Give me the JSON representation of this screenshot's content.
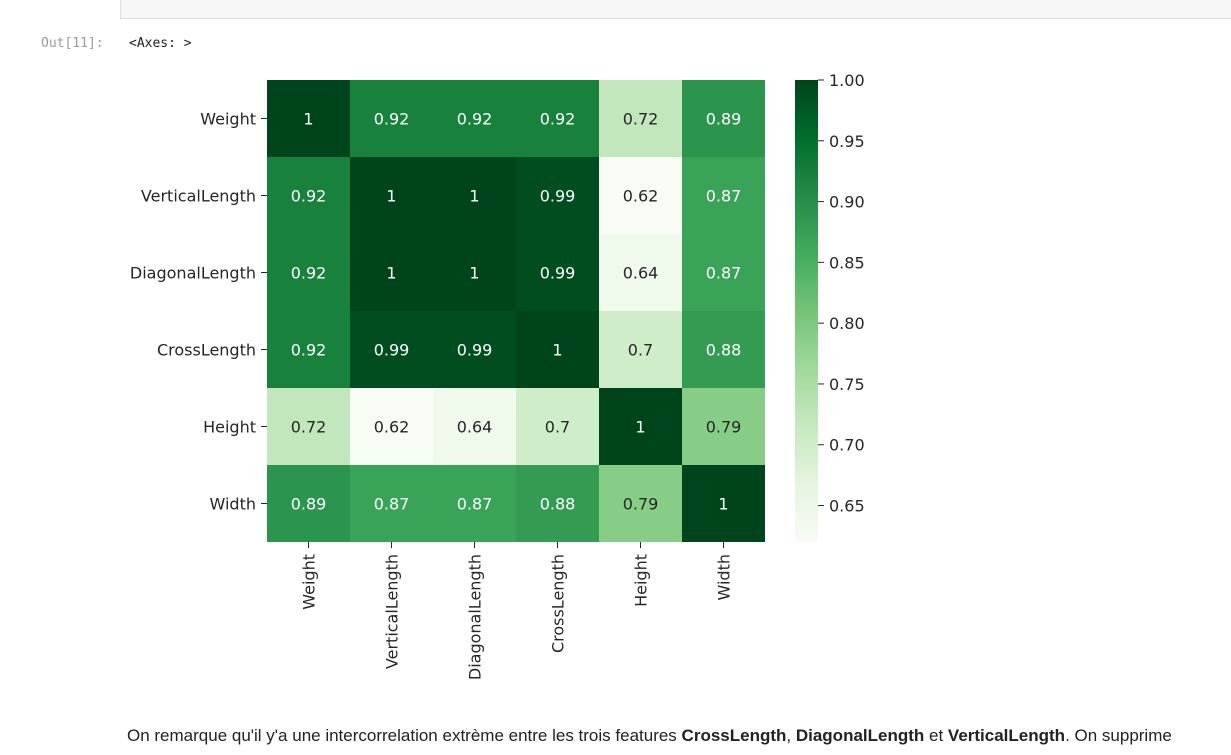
{
  "output": {
    "prompt": "Out[11]:",
    "text": "<Axes: >"
  },
  "chart_data": {
    "type": "heatmap",
    "labels": [
      "Weight",
      "VerticalLength",
      "DiagonalLength",
      "CrossLength",
      "Height",
      "Width"
    ],
    "matrix": [
      [
        1,
        0.92,
        0.92,
        0.92,
        0.72,
        0.89
      ],
      [
        0.92,
        1,
        1,
        0.99,
        0.62,
        0.87
      ],
      [
        0.92,
        1,
        1,
        0.99,
        0.64,
        0.87
      ],
      [
        0.92,
        0.99,
        0.99,
        1,
        0.7,
        0.88
      ],
      [
        0.72,
        0.62,
        0.64,
        0.7,
        1,
        0.79
      ],
      [
        0.89,
        0.87,
        0.87,
        0.88,
        0.79,
        1
      ]
    ],
    "annotations": [
      [
        "1",
        "0.92",
        "0.92",
        "0.92",
        "0.72",
        "0.89"
      ],
      [
        "0.92",
        "1",
        "1",
        "0.99",
        "0.62",
        "0.87"
      ],
      [
        "0.92",
        "1",
        "1",
        "0.99",
        "0.64",
        "0.87"
      ],
      [
        "0.92",
        "0.99",
        "0.99",
        "1",
        "0.7",
        "0.88"
      ],
      [
        "0.72",
        "0.62",
        "0.64",
        "0.7",
        "1",
        "0.79"
      ],
      [
        "0.89",
        "0.87",
        "0.87",
        "0.88",
        "0.79",
        "1"
      ]
    ],
    "colormap": "Greens",
    "vmin": 0.62,
    "vmax": 1.0,
    "colorbar_ticks": [
      "1.00",
      "0.95",
      "0.90",
      "0.85",
      "0.80",
      "0.75",
      "0.70",
      "0.65"
    ],
    "colorbar_tick_values": [
      1.0,
      0.95,
      0.9,
      0.85,
      0.8,
      0.75,
      0.7,
      0.65
    ]
  },
  "markdown": {
    "before": "On remarque qu'il y'a une intercorrelation extrème entre les trois features ",
    "f1": "CrossLength",
    "sep1": ", ",
    "f2": "DiagonalLength",
    "sep2": " et ",
    "f3": "VerticalLength",
    "after": ". On supprime"
  }
}
